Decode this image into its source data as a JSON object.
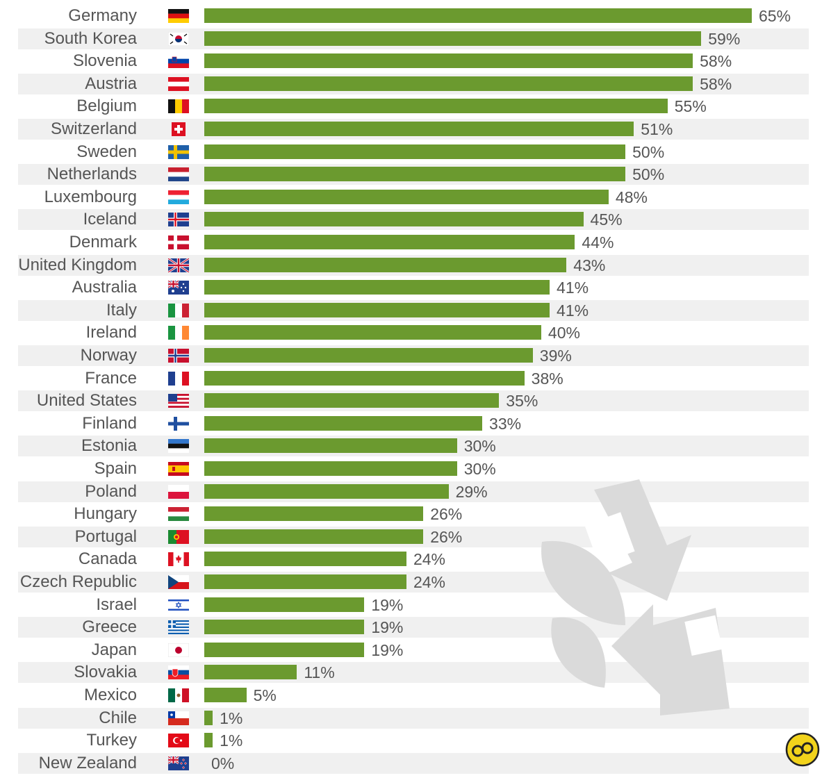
{
  "chart_data": {
    "type": "bar",
    "orientation": "horizontal",
    "xlim": [
      0,
      65
    ],
    "value_suffix": "%",
    "grid": false,
    "bar_color": "#6b9a2f",
    "rows": [
      {
        "label": "Germany",
        "value": 65,
        "value_label": "65%",
        "flag": "de"
      },
      {
        "label": "South Korea",
        "value": 59,
        "value_label": "59%",
        "flag": "kr"
      },
      {
        "label": "Slovenia",
        "value": 58,
        "value_label": "58%",
        "flag": "si"
      },
      {
        "label": "Austria",
        "value": 58,
        "value_label": "58%",
        "flag": "at"
      },
      {
        "label": "Belgium",
        "value": 55,
        "value_label": "55%",
        "flag": "be"
      },
      {
        "label": "Switzerland",
        "value": 51,
        "value_label": "51%",
        "flag": "ch"
      },
      {
        "label": "Sweden",
        "value": 50,
        "value_label": "50%",
        "flag": "se"
      },
      {
        "label": "Netherlands",
        "value": 50,
        "value_label": "50%",
        "flag": "nl"
      },
      {
        "label": "Luxembourg",
        "value": 48,
        "value_label": "48%",
        "flag": "lu"
      },
      {
        "label": "Iceland",
        "value": 45,
        "value_label": "45%",
        "flag": "is"
      },
      {
        "label": "Denmark",
        "value": 44,
        "value_label": "44%",
        "flag": "dk"
      },
      {
        "label": "United Kingdom",
        "value": 43,
        "value_label": "43%",
        "flag": "gb"
      },
      {
        "label": "Australia",
        "value": 41,
        "value_label": "41%",
        "flag": "au"
      },
      {
        "label": "Italy",
        "value": 41,
        "value_label": "41%",
        "flag": "it"
      },
      {
        "label": "Ireland",
        "value": 40,
        "value_label": "40%",
        "flag": "ie"
      },
      {
        "label": "Norway",
        "value": 39,
        "value_label": "39%",
        "flag": "no"
      },
      {
        "label": "France",
        "value": 38,
        "value_label": "38%",
        "flag": "fr"
      },
      {
        "label": "United States",
        "value": 35,
        "value_label": "35%",
        "flag": "us"
      },
      {
        "label": "Finland",
        "value": 33,
        "value_label": "33%",
        "flag": "fi"
      },
      {
        "label": "Estonia",
        "value": 30,
        "value_label": "30%",
        "flag": "ee"
      },
      {
        "label": "Spain",
        "value": 30,
        "value_label": "30%",
        "flag": "es"
      },
      {
        "label": "Poland",
        "value": 29,
        "value_label": "29%",
        "flag": "pl"
      },
      {
        "label": "Hungary",
        "value": 26,
        "value_label": "26%",
        "flag": "hu"
      },
      {
        "label": "Portugal",
        "value": 26,
        "value_label": "26%",
        "flag": "pt"
      },
      {
        "label": "Canada",
        "value": 24,
        "value_label": "24%",
        "flag": "ca"
      },
      {
        "label": "Czech Republic",
        "value": 24,
        "value_label": "24%",
        "flag": "cz"
      },
      {
        "label": "Israel",
        "value": 19,
        "value_label": "19%",
        "flag": "il"
      },
      {
        "label": "Greece",
        "value": 19,
        "value_label": "19%",
        "flag": "gr"
      },
      {
        "label": "Japan",
        "value": 19,
        "value_label": "19%",
        "flag": "jp"
      },
      {
        "label": "Slovakia",
        "value": 11,
        "value_label": "11%",
        "flag": "sk"
      },
      {
        "label": "Mexico",
        "value": 5,
        "value_label": "5%",
        "flag": "mx"
      },
      {
        "label": "Chile",
        "value": 1,
        "value_label": "1%",
        "flag": "cl"
      },
      {
        "label": "Turkey",
        "value": 1,
        "value_label": "1%",
        "flag": "tr"
      },
      {
        "label": "New Zealand",
        "value": 0,
        "value_label": "0%",
        "flag": "nz"
      }
    ]
  },
  "decorations": {
    "watermark_icon": "recycle-leaf-icon",
    "watermark_color": "#d9d9d9",
    "logo_icon": "ok-logo-icon",
    "logo_color": "#f2d31b"
  }
}
